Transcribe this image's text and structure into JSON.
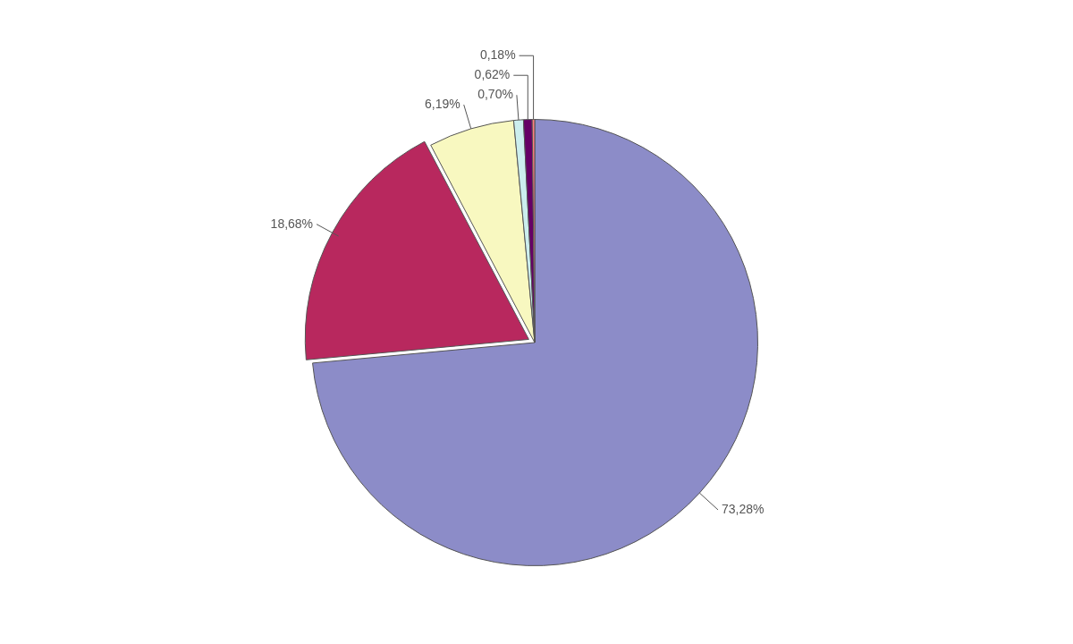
{
  "chart_data": {
    "type": "pie",
    "categories": [
      null,
      null,
      null,
      null,
      null,
      null
    ],
    "values": [
      73.28,
      18.68,
      6.19,
      0.7,
      0.62,
      0.18
    ],
    "colors": [
      "#8c8cc8",
      "#b8285e",
      "#f8f8c0",
      "#cceeee",
      "#660066",
      "#ff8080"
    ],
    "value_labels": [
      "73,28%",
      "18,68%",
      "6,19%",
      "0,70%",
      "0,62%",
      "0,18%"
    ]
  }
}
